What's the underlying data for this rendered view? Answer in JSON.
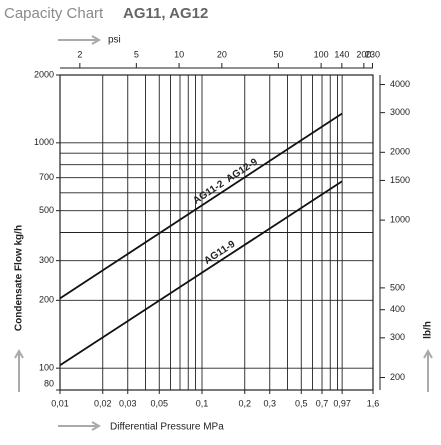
{
  "chart_data": {
    "type": "line",
    "log_scale": true,
    "title": "Capacity Chart",
    "title_models": "AG11, AG12",
    "x_label": "Differential Pressure MPa",
    "x2_label": "psi",
    "y_label": "Condensate Flow kg/h",
    "y2_label": "lb/h",
    "xlim": [
      0.01,
      1.6
    ],
    "xticks": [
      {
        "value": 0.01,
        "label": "0,01"
      },
      {
        "value": 0.02,
        "label": "0,02"
      },
      {
        "value": 0.03,
        "label": "0,03"
      },
      {
        "value": 0.05,
        "label": "0,05"
      },
      {
        "value": 0.1,
        "label": "0,1"
      },
      {
        "value": 0.2,
        "label": "0,2"
      },
      {
        "value": 0.3,
        "label": "0,3"
      },
      {
        "value": 0.5,
        "label": "0,5"
      },
      {
        "value": 0.7,
        "label": "0,7"
      },
      {
        "value": 0.97,
        "label": "0,97"
      },
      {
        "value": 1.6,
        "label": "1,6"
      }
    ],
    "xgrid": [
      0.01,
      0.02,
      0.03,
      0.04,
      0.05,
      0.06,
      0.07,
      0.08,
      0.09,
      0.1,
      0.2,
      0.3,
      0.4,
      0.5,
      0.6,
      0.7,
      0.8,
      0.9,
      0.97,
      1.6
    ],
    "x2lim": [
      1.45,
      232
    ],
    "x2ticks": [
      2,
      5,
      10,
      20,
      50,
      100,
      140,
      200,
      230
    ],
    "ylim": [
      80,
      2000
    ],
    "yticks": [
      80,
      100,
      200,
      300,
      500,
      700,
      1000,
      2000
    ],
    "ygrid": [
      100,
      200,
      300,
      400,
      500,
      600,
      700,
      800,
      900,
      1000,
      2000
    ],
    "y2lim": [
      176,
      4409
    ],
    "y2ticks": [
      200,
      300,
      400,
      500,
      1000,
      1500,
      2000,
      3000,
      4000
    ],
    "series": [
      {
        "name": "AG11-2  AG12-9",
        "color": "#111111",
        "x": [
          0.01,
          0.97
        ],
        "values": [
          204,
          1350
        ]
      },
      {
        "name": "AG11-9",
        "color": "#111111",
        "x": [
          0.01,
          0.97
        ],
        "values": [
          103,
          675
        ]
      }
    ]
  }
}
